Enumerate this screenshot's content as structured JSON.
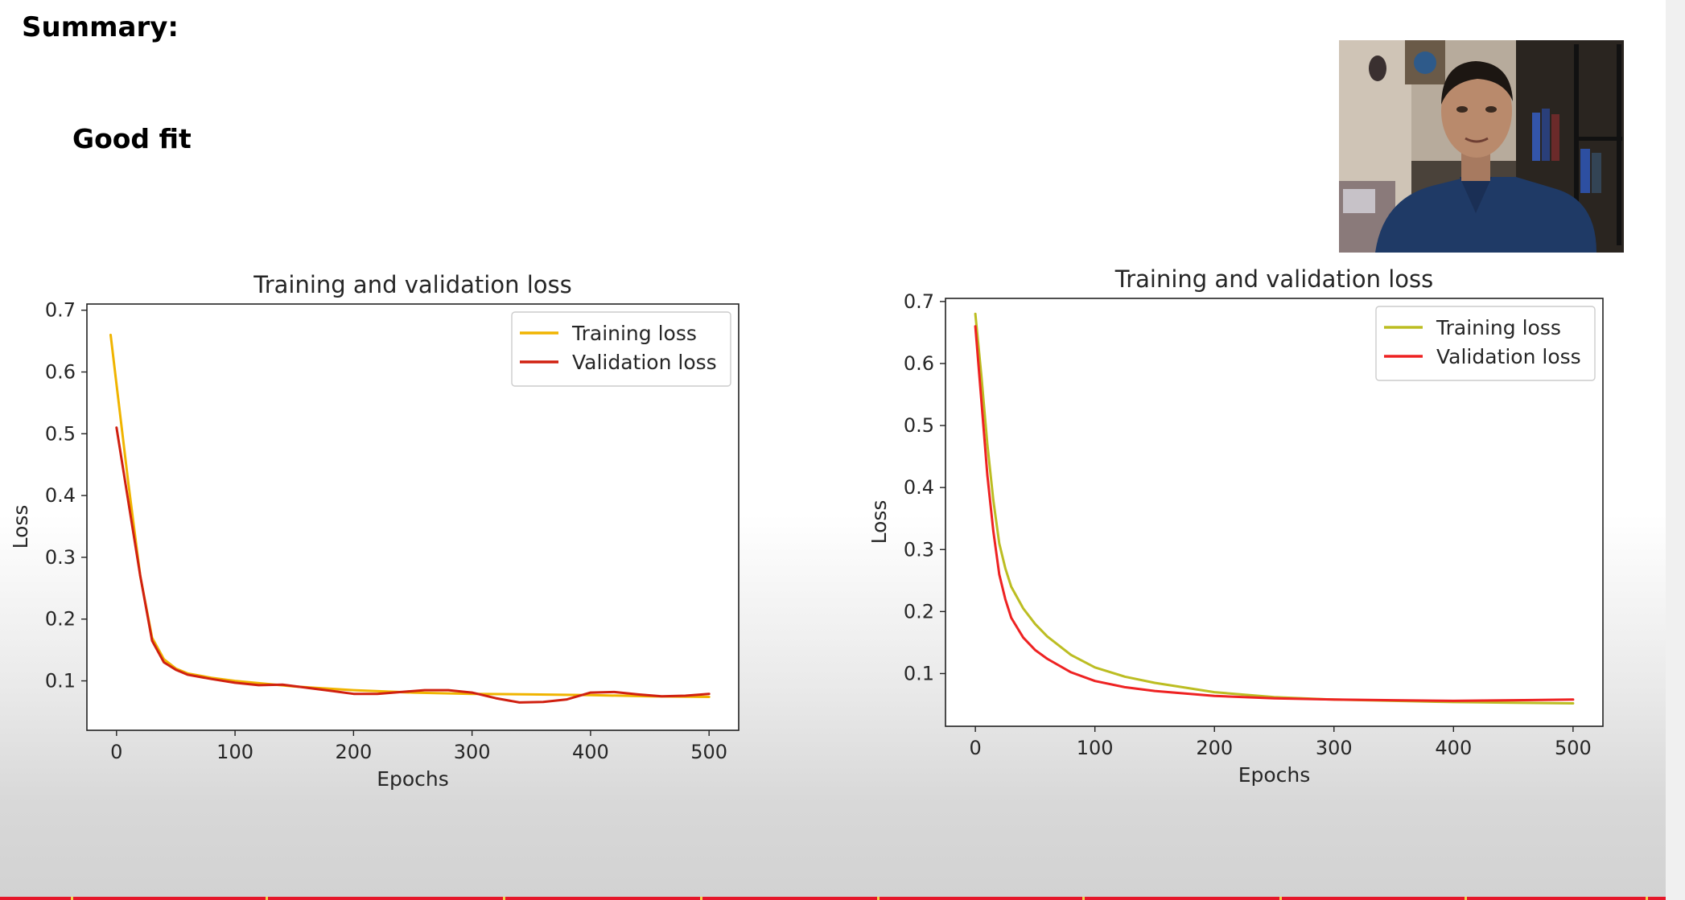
{
  "slide": {
    "title": "Summary:",
    "subtitle": "Good fit"
  },
  "chart_data": [
    {
      "type": "line",
      "title": "Training and validation loss",
      "xlabel": "Epochs",
      "ylabel": "Loss",
      "xlim": [
        -25,
        525
      ],
      "ylim": [
        0.02,
        0.71
      ],
      "xticks": [
        0,
        100,
        200,
        300,
        400,
        500
      ],
      "yticks": [
        0.1,
        0.2,
        0.3,
        0.4,
        0.5,
        0.6,
        0.7
      ],
      "grid": false,
      "legend_position": "top-right",
      "series": [
        {
          "name": "Training loss",
          "color": "#f0b400",
          "x": [
            -5,
            0,
            10,
            20,
            30,
            40,
            50,
            60,
            80,
            100,
            150,
            200,
            250,
            300,
            350,
            400,
            450,
            500
          ],
          "y": [
            0.66,
            0.58,
            0.42,
            0.27,
            0.17,
            0.135,
            0.12,
            0.112,
            0.105,
            0.1,
            0.091,
            0.085,
            0.081,
            0.079,
            0.078,
            0.077,
            0.075,
            0.074
          ]
        },
        {
          "name": "Validation loss",
          "color": "#d02010",
          "x": [
            0,
            10,
            20,
            30,
            40,
            50,
            60,
            80,
            100,
            120,
            140,
            160,
            180,
            200,
            220,
            240,
            260,
            280,
            300,
            320,
            340,
            360,
            380,
            400,
            420,
            440,
            460,
            480,
            500
          ],
          "y": [
            0.51,
            0.39,
            0.27,
            0.165,
            0.13,
            0.118,
            0.11,
            0.103,
            0.097,
            0.093,
            0.094,
            0.089,
            0.084,
            0.079,
            0.079,
            0.082,
            0.085,
            0.085,
            0.081,
            0.072,
            0.065,
            0.066,
            0.07,
            0.081,
            0.082,
            0.078,
            0.075,
            0.076,
            0.079
          ]
        }
      ]
    },
    {
      "type": "line",
      "title": "Training and validation loss",
      "xlabel": "Epochs",
      "ylabel": "Loss",
      "xlim": [
        -25,
        525
      ],
      "ylim": [
        0.015,
        0.705
      ],
      "xticks": [
        0,
        100,
        200,
        300,
        400,
        500
      ],
      "yticks": [
        0.1,
        0.2,
        0.3,
        0.4,
        0.5,
        0.6,
        0.7
      ],
      "grid": false,
      "legend_position": "top-right",
      "series": [
        {
          "name": "Training loss",
          "color": "#bcbd22",
          "x": [
            0,
            5,
            10,
            15,
            20,
            25,
            30,
            40,
            50,
            60,
            80,
            100,
            125,
            150,
            200,
            250,
            300,
            350,
            400,
            450,
            500
          ],
          "y": [
            0.68,
            0.58,
            0.47,
            0.38,
            0.31,
            0.27,
            0.24,
            0.205,
            0.18,
            0.16,
            0.13,
            0.11,
            0.095,
            0.085,
            0.07,
            0.062,
            0.058,
            0.056,
            0.054,
            0.053,
            0.052
          ]
        },
        {
          "name": "Validation loss",
          "color": "#ee2222",
          "x": [
            0,
            5,
            10,
            15,
            20,
            25,
            30,
            40,
            50,
            60,
            80,
            100,
            125,
            150,
            200,
            250,
            300,
            350,
            400,
            450,
            500
          ],
          "y": [
            0.66,
            0.54,
            0.42,
            0.33,
            0.26,
            0.22,
            0.19,
            0.158,
            0.138,
            0.124,
            0.102,
            0.088,
            0.078,
            0.072,
            0.064,
            0.06,
            0.058,
            0.057,
            0.056,
            0.057,
            0.058
          ]
        }
      ]
    }
  ]
}
